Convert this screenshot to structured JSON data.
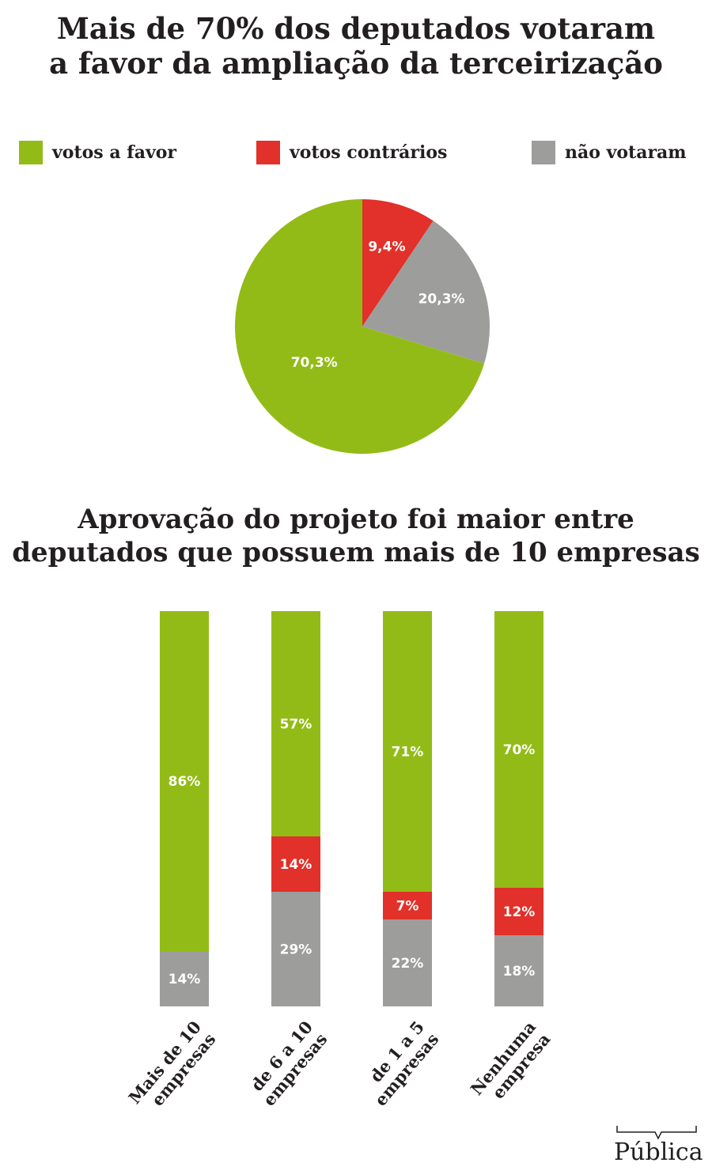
{
  "title": {
    "line1": "Mais de 70% dos deputados votaram",
    "line2": "a favor da ampliação da terceirização"
  },
  "legend": [
    {
      "label": "votos a favor",
      "color": "#93bb17"
    },
    {
      "label": "votos contrários",
      "color": "#e2302a"
    },
    {
      "label": "não votaram",
      "color": "#9d9d9c"
    }
  ],
  "chart_data": [
    {
      "type": "pie",
      "title": "Mais de 70% dos deputados votaram a favor da ampliação da terceirização",
      "slices": [
        {
          "name": "votos contrários",
          "value": 9.4,
          "label": "9,4%",
          "color": "#e2302a"
        },
        {
          "name": "não votaram",
          "value": 20.3,
          "label": "20,3%",
          "color": "#9d9d9c"
        },
        {
          "name": "votos a favor",
          "value": 70.3,
          "label": "70,3%",
          "color": "#93bb17"
        }
      ],
      "legend": "top"
    },
    {
      "type": "bar",
      "stacked": true,
      "title": "Aprovação do projeto foi maior entre deputados que possuem mais de 10 empresas",
      "categories": [
        [
          "Mais de 10",
          "empresas"
        ],
        [
          "de 6 a 10",
          "empresas"
        ],
        [
          "de 1 a 5",
          "empresas"
        ],
        [
          "Nenhuma",
          "empresa"
        ]
      ],
      "series": [
        {
          "name": "votos a favor",
          "color": "#93bb17",
          "values": [
            86,
            57,
            71,
            70
          ],
          "labels": [
            "86%",
            "57%",
            "71%",
            "70%"
          ]
        },
        {
          "name": "votos contrários",
          "color": "#e2302a",
          "values": [
            0,
            14,
            7,
            12
          ],
          "labels": [
            "",
            "14%",
            "7%",
            "12%"
          ]
        },
        {
          "name": "não votaram",
          "color": "#9d9d9c",
          "values": [
            14,
            29,
            22,
            18
          ],
          "labels": [
            "14%",
            "29%",
            "22%",
            "18%"
          ]
        }
      ],
      "ylim": [
        0,
        100
      ]
    }
  ],
  "bar_title": {
    "line1": "Aprovação do projeto foi maior entre",
    "line2": "deputados que possuem mais de 10 empresas"
  },
  "logo": {
    "text": "Pública",
    "icon": "speech-bubble-icon"
  }
}
